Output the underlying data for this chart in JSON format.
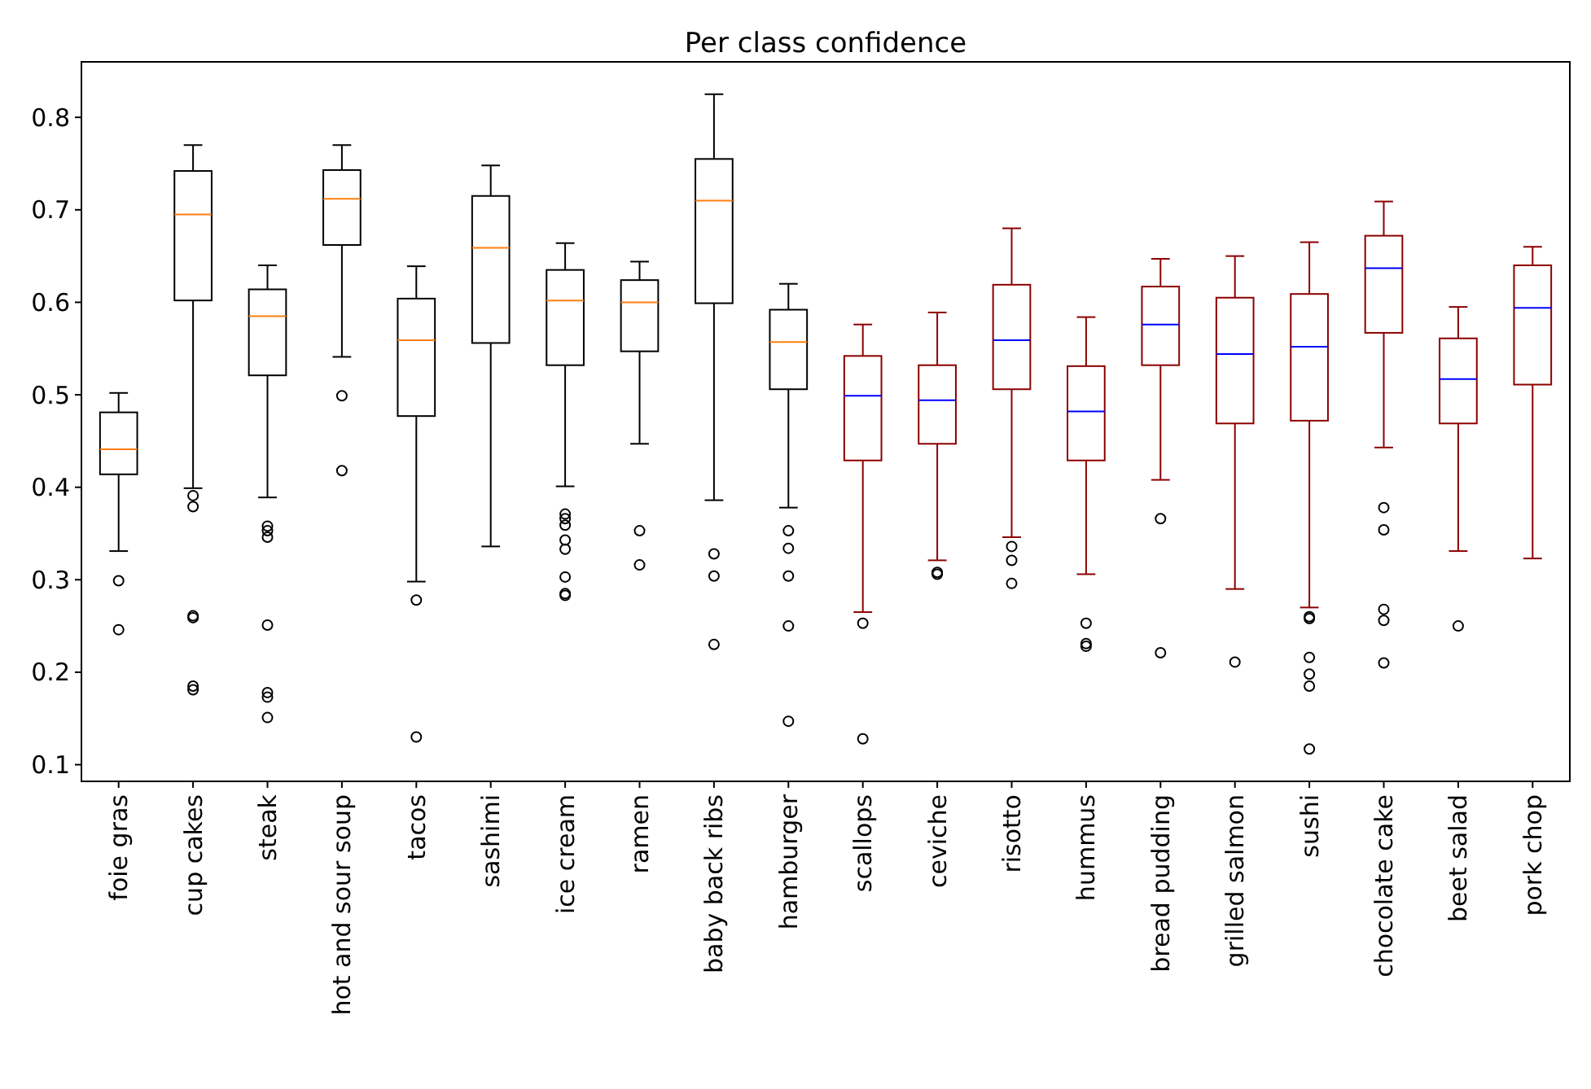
{
  "chart_data": {
    "type": "box",
    "title": "Per class confidence",
    "categories": [
      "foie gras",
      "cup cakes",
      "steak",
      "hot and sour soup",
      "tacos",
      "sashimi",
      "ice cream",
      "ramen",
      "baby back ribs",
      "hamburger",
      "scallops",
      "ceviche",
      "risotto",
      "hummus",
      "bread pudding",
      "grilled salmon",
      "sushi",
      "chocolate cake",
      "beet salad",
      "pork chop"
    ],
    "ylim": [
      0.082,
      0.86
    ],
    "yticks": [
      0.1,
      0.2,
      0.3,
      0.4,
      0.5,
      0.6,
      0.7,
      0.8
    ],
    "grid": false,
    "series": [
      {
        "color": "#000000",
        "boxes": [
          {
            "low": 0.331,
            "q1": 0.414,
            "median": 0.441,
            "q3": 0.481,
            "high": 0.502,
            "outliers": [
              0.299,
              0.246
            ]
          },
          {
            "low": 0.399,
            "q1": 0.602,
            "median": 0.695,
            "q3": 0.742,
            "high": 0.77,
            "outliers": [
              0.391,
              0.379,
              0.261,
              0.259,
              0.185,
              0.181
            ]
          },
          {
            "low": 0.389,
            "q1": 0.521,
            "median": 0.585,
            "q3": 0.614,
            "high": 0.64,
            "outliers": [
              0.358,
              0.353,
              0.346,
              0.251,
              0.178,
              0.173,
              0.151
            ]
          },
          {
            "low": 0.541,
            "q1": 0.662,
            "median": 0.712,
            "q3": 0.743,
            "high": 0.77,
            "outliers": [
              0.499,
              0.418
            ]
          },
          {
            "low": 0.298,
            "q1": 0.477,
            "median": 0.559,
            "q3": 0.604,
            "high": 0.639,
            "outliers": [
              0.278,
              0.13
            ]
          },
          {
            "low": 0.336,
            "q1": 0.556,
            "median": 0.659,
            "q3": 0.715,
            "high": 0.748
          },
          {
            "low": 0.401,
            "q1": 0.532,
            "median": 0.602,
            "q3": 0.635,
            "high": 0.664,
            "outliers": [
              0.371,
              0.366,
              0.359,
              0.343,
              0.333,
              0.303,
              0.285,
              0.283
            ]
          },
          {
            "low": 0.447,
            "q1": 0.547,
            "median": 0.6,
            "q3": 0.624,
            "high": 0.644,
            "outliers": [
              0.353,
              0.316
            ]
          },
          {
            "low": 0.386,
            "q1": 0.599,
            "median": 0.71,
            "q3": 0.755,
            "high": 0.825,
            "outliers": [
              0.328,
              0.304,
              0.23
            ]
          },
          {
            "low": 0.378,
            "q1": 0.506,
            "median": 0.557,
            "q3": 0.592,
            "high": 0.62,
            "outliers": [
              0.353,
              0.334,
              0.304,
              0.25,
              0.147
            ]
          },
          null,
          null,
          null,
          null,
          null,
          null,
          null,
          null,
          null,
          null
        ]
      },
      {
        "color": "#8b0000",
        "boxes": [
          null,
          null,
          null,
          null,
          null,
          null,
          null,
          null,
          null,
          null,
          {
            "low": 0.265,
            "q1": 0.429,
            "median": 0.499,
            "q3": 0.542,
            "high": 0.576,
            "outliers": [
              0.253,
              0.128
            ]
          },
          {
            "low": 0.321,
            "q1": 0.447,
            "median": 0.494,
            "q3": 0.532,
            "high": 0.589,
            "outliers": [
              0.308,
              0.306
            ]
          },
          {
            "low": 0.346,
            "q1": 0.506,
            "median": 0.559,
            "q3": 0.619,
            "high": 0.68,
            "outliers": [
              0.336,
              0.321,
              0.296
            ]
          },
          {
            "low": 0.306,
            "q1": 0.429,
            "median": 0.482,
            "q3": 0.531,
            "high": 0.584,
            "outliers": [
              0.253,
              0.231,
              0.228
            ]
          },
          {
            "low": 0.408,
            "q1": 0.532,
            "median": 0.576,
            "q3": 0.617,
            "high": 0.647,
            "outliers": [
              0.366,
              0.221
            ]
          },
          {
            "low": 0.29,
            "q1": 0.469,
            "median": 0.544,
            "q3": 0.605,
            "high": 0.65,
            "outliers": [
              0.211
            ]
          },
          {
            "low": 0.27,
            "q1": 0.472,
            "median": 0.552,
            "q3": 0.609,
            "high": 0.665,
            "outliers": [
              0.26,
              0.258,
              0.216,
              0.198,
              0.185,
              0.117
            ]
          },
          {
            "low": 0.443,
            "q1": 0.567,
            "median": 0.637,
            "q3": 0.672,
            "high": 0.709,
            "outliers": [
              0.378,
              0.354,
              0.268,
              0.256,
              0.21
            ]
          },
          {
            "low": 0.331,
            "q1": 0.469,
            "median": 0.517,
            "q3": 0.561,
            "high": 0.595,
            "outliers": [
              0.25
            ]
          },
          {
            "low": 0.323,
            "q1": 0.511,
            "median": 0.594,
            "q3": 0.64,
            "high": 0.66
          }
        ]
      }
    ]
  }
}
